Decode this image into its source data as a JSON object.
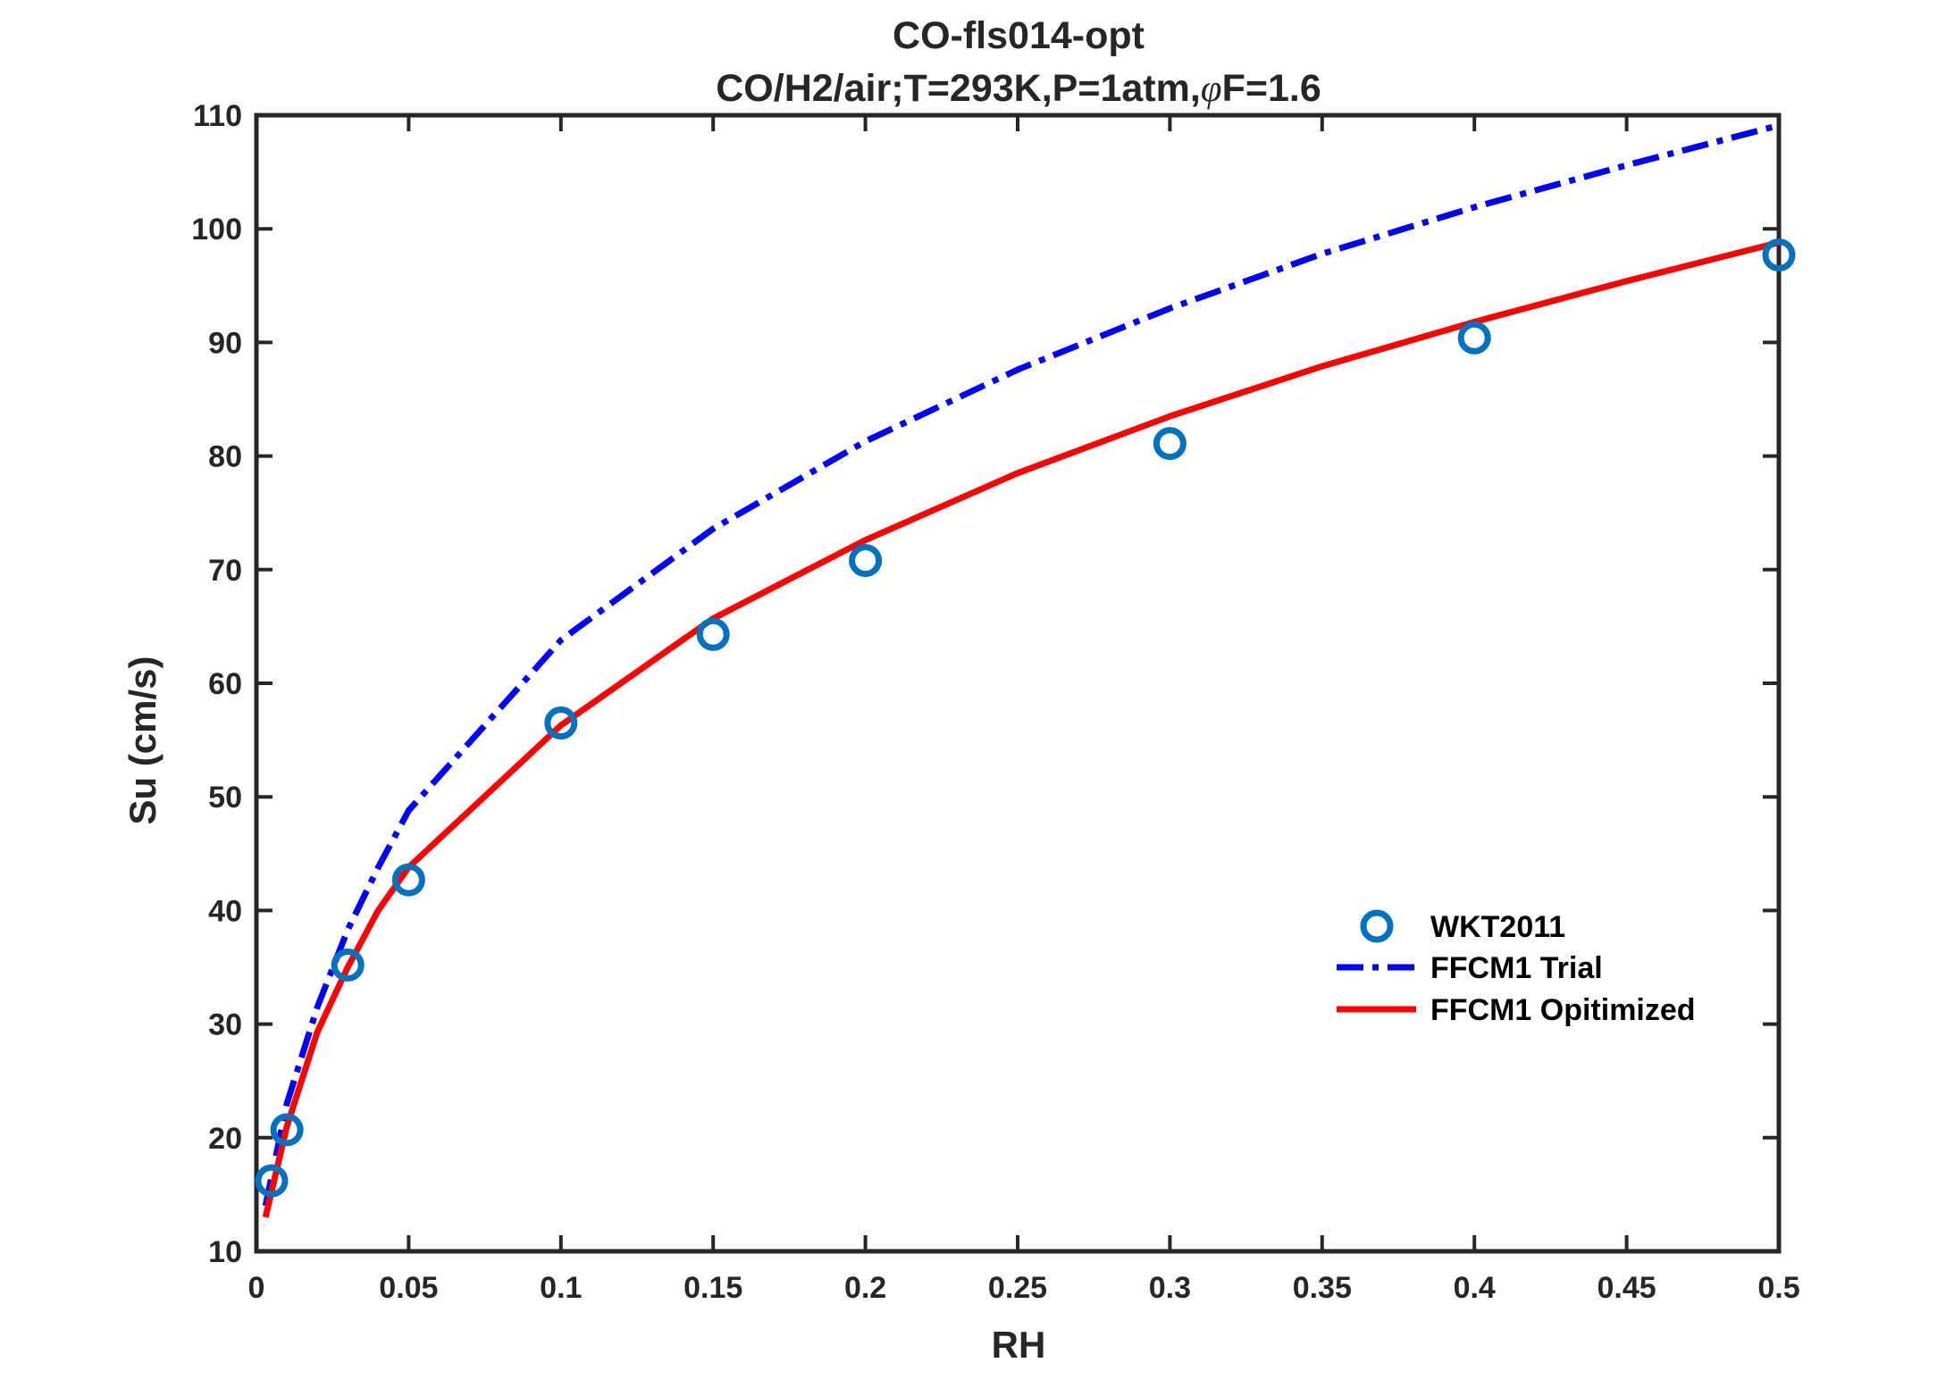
{
  "chart_data": {
    "type": "line",
    "title": "CO-fls014-opt",
    "subtitle_prefix": "CO/H2/air;T=293K,P=1atm,",
    "subtitle_phi": "φ",
    "subtitle_suffix": "F=1.6",
    "xlabel": "RH",
    "ylabel": "Su (cm/s)",
    "xlim": [
      0,
      0.5
    ],
    "ylim": [
      10,
      110
    ],
    "xticks": [
      0,
      0.05,
      0.1,
      0.15,
      0.2,
      0.25,
      0.3,
      0.35,
      0.4,
      0.45,
      0.5
    ],
    "xtick_labels": [
      "0",
      "0.05",
      "0.1",
      "0.15",
      "0.2",
      "0.25",
      "0.3",
      "0.35",
      "0.4",
      "0.45",
      "0.5"
    ],
    "yticks": [
      10,
      20,
      30,
      40,
      50,
      60,
      70,
      80,
      90,
      100,
      110
    ],
    "ytick_labels": [
      "10",
      "20",
      "30",
      "40",
      "50",
      "60",
      "70",
      "80",
      "90",
      "100",
      "110"
    ],
    "grid": false,
    "legend_position": "lower-right",
    "series": [
      {
        "name": "WKT2011",
        "kind": "scatter",
        "marker": "circle",
        "color": "#0072BD",
        "x": [
          0.005,
          0.01,
          0.03,
          0.05,
          0.1,
          0.15,
          0.2,
          0.3,
          0.4,
          0.5
        ],
        "y": [
          16.2,
          20.7,
          35.2,
          42.7,
          56.5,
          64.3,
          70.8,
          81.1,
          90.4,
          97.7
        ]
      },
      {
        "name": "FFCM1 Trial",
        "kind": "line",
        "dash": "dashdot",
        "color": "#0000FF",
        "x": [
          0.003,
          0.01,
          0.02,
          0.03,
          0.04,
          0.05,
          0.1,
          0.15,
          0.2,
          0.25,
          0.3,
          0.35,
          0.4,
          0.45,
          0.5
        ],
        "y": [
          14.0,
          23.0,
          31.5,
          38.3,
          43.8,
          48.8,
          63.8,
          73.6,
          81.3,
          87.6,
          93.0,
          97.8,
          101.9,
          105.6,
          109.1
        ]
      },
      {
        "name": "FFCM1 Opitimized",
        "kind": "line",
        "dash": "solid",
        "color": "#FF0000",
        "x": [
          0.003,
          0.01,
          0.02,
          0.03,
          0.04,
          0.05,
          0.1,
          0.15,
          0.2,
          0.25,
          0.3,
          0.35,
          0.4,
          0.45,
          0.5
        ],
        "y": [
          13.0,
          21.0,
          29.3,
          35.0,
          40.0,
          43.8,
          56.3,
          65.7,
          72.6,
          78.5,
          83.5,
          87.9,
          91.8,
          95.4,
          98.8
        ]
      }
    ]
  }
}
